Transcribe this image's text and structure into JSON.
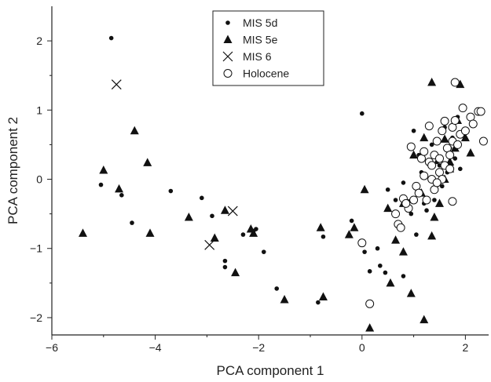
{
  "chart_data": {
    "type": "scatter",
    "xlabel": "PCA component 1",
    "ylabel": "PCA component 2",
    "xlim": [
      -6,
      2.45
    ],
    "ylim": [
      -2.25,
      2.5
    ],
    "xticks": [
      -6,
      -4,
      -2,
      0,
      2
    ],
    "yticks": [
      -2,
      -1,
      0,
      1,
      2
    ],
    "grid": false,
    "legend_position": "top-center",
    "series": [
      {
        "name": "MIS 5d",
        "marker": "dot",
        "points": [
          [
            -4.85,
            2.04
          ],
          [
            -5.05,
            -0.08
          ],
          [
            -4.65,
            -0.23
          ],
          [
            -4.45,
            -0.63
          ],
          [
            -3.7,
            -0.17
          ],
          [
            -3.1,
            -0.27
          ],
          [
            -2.9,
            -0.53
          ],
          [
            -2.65,
            -1.18
          ],
          [
            -2.65,
            -1.27
          ],
          [
            -2.3,
            -0.8
          ],
          [
            -2.1,
            -0.75
          ],
          [
            -2.05,
            -0.72
          ],
          [
            -1.9,
            -1.05
          ],
          [
            -1.65,
            -1.58
          ],
          [
            -0.85,
            -1.78
          ],
          [
            -0.75,
            -0.83
          ],
          [
            -0.2,
            -0.6
          ],
          [
            0.0,
            0.95
          ],
          [
            0.05,
            -1.05
          ],
          [
            0.15,
            -1.33
          ],
          [
            0.3,
            -1.0
          ],
          [
            0.35,
            -1.25
          ],
          [
            0.45,
            -1.35
          ],
          [
            0.65,
            -0.3
          ],
          [
            0.8,
            -1.4
          ],
          [
            0.9,
            -0.32
          ],
          [
            0.95,
            -0.5
          ],
          [
            1.0,
            0.7
          ],
          [
            1.05,
            -0.8
          ],
          [
            1.1,
            0.35
          ],
          [
            1.15,
            0.1
          ],
          [
            1.2,
            -0.35
          ],
          [
            1.25,
            -0.45
          ],
          [
            1.35,
            0.5
          ],
          [
            1.4,
            -0.3
          ],
          [
            1.45,
            0.25
          ],
          [
            1.5,
            0.2
          ],
          [
            1.55,
            -0.1
          ],
          [
            1.6,
            0.75
          ],
          [
            1.65,
            0.1
          ],
          [
            1.7,
            0.45
          ],
          [
            1.75,
            0.6
          ],
          [
            1.8,
            0.3
          ],
          [
            1.85,
            0.9
          ],
          [
            1.9,
            0.15
          ],
          [
            0.5,
            -0.15
          ],
          [
            0.8,
            -0.05
          ]
        ]
      },
      {
        "name": "MIS 5e",
        "marker": "triangle",
        "points": [
          [
            -5.4,
            -0.78
          ],
          [
            -5.0,
            0.13
          ],
          [
            -4.7,
            -0.14
          ],
          [
            -4.4,
            0.7
          ],
          [
            -4.15,
            0.24
          ],
          [
            -4.1,
            -0.78
          ],
          [
            -3.35,
            -0.55
          ],
          [
            -2.65,
            -0.45
          ],
          [
            -2.85,
            -0.85
          ],
          [
            -2.1,
            -0.78
          ],
          [
            -2.15,
            -0.72
          ],
          [
            -2.45,
            -1.35
          ],
          [
            -1.5,
            -1.74
          ],
          [
            -0.8,
            -0.7
          ],
          [
            -0.75,
            -1.7
          ],
          [
            -0.25,
            -0.8
          ],
          [
            -0.15,
            -0.7
          ],
          [
            0.05,
            -0.15
          ],
          [
            0.15,
            -2.15
          ],
          [
            0.5,
            -0.42
          ],
          [
            0.55,
            -1.5
          ],
          [
            0.65,
            -0.88
          ],
          [
            0.8,
            -0.35
          ],
          [
            0.8,
            -1.05
          ],
          [
            0.95,
            -1.65
          ],
          [
            1.2,
            -2.03
          ],
          [
            1.0,
            0.35
          ],
          [
            1.2,
            0.6
          ],
          [
            1.35,
            -0.82
          ],
          [
            1.35,
            1.4
          ],
          [
            1.5,
            -0.35
          ],
          [
            1.6,
            0.58
          ],
          [
            1.7,
            0.15
          ],
          [
            1.8,
            0.45
          ],
          [
            1.85,
            0.85
          ],
          [
            1.9,
            1.37
          ],
          [
            2.0,
            0.6
          ],
          [
            2.1,
            0.38
          ],
          [
            1.4,
            -0.55
          ],
          [
            1.15,
            -0.2
          ],
          [
            1.6,
            0.0
          ],
          [
            1.7,
            0.25
          ]
        ]
      },
      {
        "name": "MIS 6",
        "marker": "x",
        "points": [
          [
            -4.75,
            1.37
          ],
          [
            -2.5,
            -0.46
          ],
          [
            -2.95,
            -0.95
          ]
        ]
      },
      {
        "name": "Holocene",
        "marker": "circle",
        "points": [
          [
            0.0,
            -0.92
          ],
          [
            0.15,
            -1.8
          ],
          [
            0.65,
            -0.5
          ],
          [
            0.7,
            -0.65
          ],
          [
            0.75,
            -0.7
          ],
          [
            0.8,
            -0.28
          ],
          [
            0.9,
            -0.42
          ],
          [
            0.95,
            0.47
          ],
          [
            1.0,
            -0.3
          ],
          [
            1.05,
            -0.1
          ],
          [
            1.1,
            -0.2
          ],
          [
            1.15,
            0.3
          ],
          [
            1.2,
            0.4
          ],
          [
            1.25,
            -0.3
          ],
          [
            1.3,
            0.25
          ],
          [
            1.3,
            0.77
          ],
          [
            1.35,
            0.0
          ],
          [
            1.35,
            0.2
          ],
          [
            1.4,
            0.35
          ],
          [
            1.45,
            0.55
          ],
          [
            1.5,
            0.1
          ],
          [
            1.5,
            0.3
          ],
          [
            1.55,
            0.7
          ],
          [
            1.6,
            0.2
          ],
          [
            1.6,
            0.84
          ],
          [
            1.65,
            0.45
          ],
          [
            1.7,
            0.35
          ],
          [
            1.75,
            0.55
          ],
          [
            1.75,
            0.75
          ],
          [
            1.8,
            1.4
          ],
          [
            1.8,
            0.85
          ],
          [
            1.85,
            0.5
          ],
          [
            1.9,
            0.65
          ],
          [
            1.95,
            1.03
          ],
          [
            2.0,
            0.7
          ],
          [
            2.1,
            0.9
          ],
          [
            2.15,
            0.8
          ],
          [
            2.25,
            0.98
          ],
          [
            2.3,
            0.98
          ],
          [
            2.35,
            0.55
          ],
          [
            1.75,
            -0.32
          ],
          [
            1.55,
            0.0
          ],
          [
            1.4,
            -0.15
          ],
          [
            1.7,
            0.15
          ],
          [
            1.2,
            0.05
          ],
          [
            1.45,
            -0.05
          ],
          [
            0.85,
            -0.35
          ]
        ]
      }
    ]
  }
}
